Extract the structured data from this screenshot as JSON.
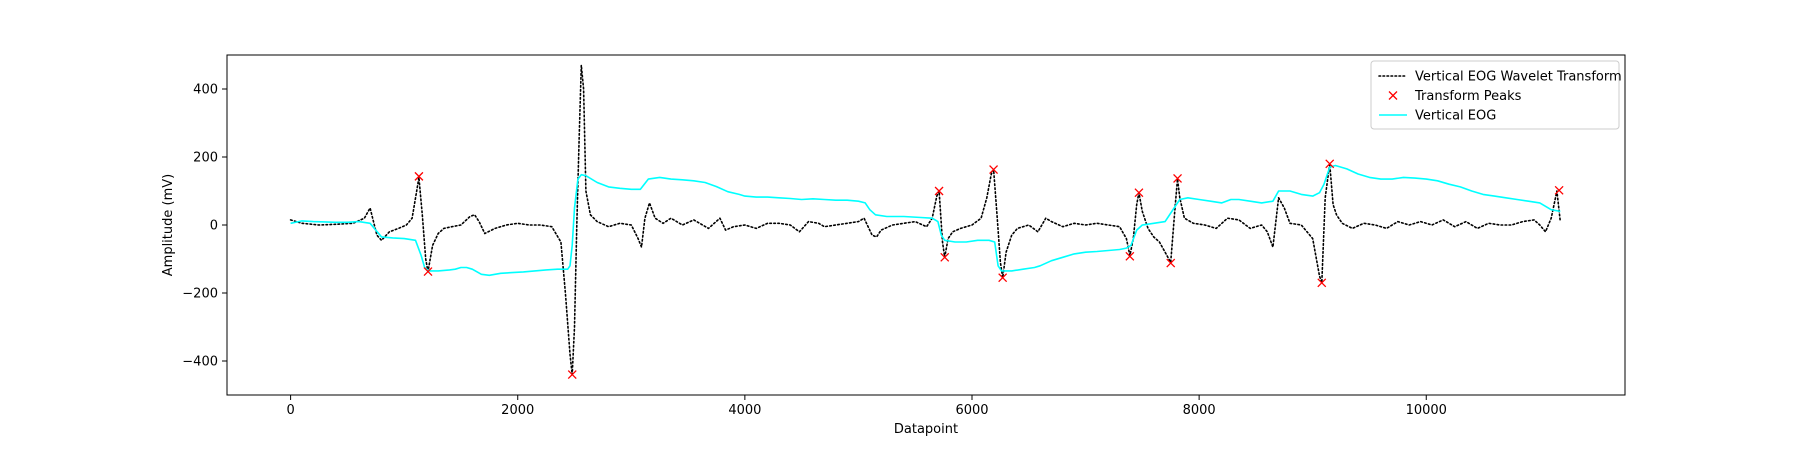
{
  "chart_data": {
    "type": "line",
    "title": "",
    "xlabel": "Datapoint",
    "ylabel": "Amplitude (mV)",
    "xlim": [
      -560,
      11750
    ],
    "ylim": [
      -500,
      500
    ],
    "xticks": [
      0,
      2000,
      4000,
      6000,
      8000,
      10000
    ],
    "yticks": [
      -400,
      -200,
      0,
      200,
      400
    ],
    "grid": false,
    "legend_position": "top-right",
    "series": [
      {
        "name": "Vertical EOG Wavelet Transform",
        "style": "dotted",
        "color": "#000000",
        "points": [
          [
            0,
            15
          ],
          [
            100,
            5
          ],
          [
            250,
            0
          ],
          [
            400,
            2
          ],
          [
            550,
            5
          ],
          [
            650,
            20
          ],
          [
            700,
            50
          ],
          [
            760,
            -30
          ],
          [
            800,
            -45
          ],
          [
            870,
            -20
          ],
          [
            950,
            -10
          ],
          [
            1020,
            0
          ],
          [
            1070,
            20
          ],
          [
            1110,
            100
          ],
          [
            1130,
            140
          ],
          [
            1160,
            30
          ],
          [
            1190,
            -100
          ],
          [
            1210,
            -137
          ],
          [
            1250,
            -60
          ],
          [
            1300,
            -25
          ],
          [
            1350,
            -10
          ],
          [
            1420,
            -5
          ],
          [
            1500,
            0
          ],
          [
            1580,
            25
          ],
          [
            1620,
            30
          ],
          [
            1660,
            10
          ],
          [
            1710,
            -25
          ],
          [
            1800,
            -10
          ],
          [
            1900,
            0
          ],
          [
            2000,
            5
          ],
          [
            2100,
            0
          ],
          [
            2200,
            0
          ],
          [
            2300,
            -5
          ],
          [
            2380,
            -50
          ],
          [
            2420,
            -200
          ],
          [
            2460,
            -380
          ],
          [
            2480,
            -440
          ],
          [
            2500,
            -300
          ],
          [
            2520,
            0
          ],
          [
            2540,
            250
          ],
          [
            2560,
            470
          ],
          [
            2580,
            400
          ],
          [
            2600,
            100
          ],
          [
            2640,
            30
          ],
          [
            2700,
            10
          ],
          [
            2800,
            -5
          ],
          [
            2900,
            5
          ],
          [
            3000,
            0
          ],
          [
            3060,
            -40
          ],
          [
            3090,
            -65
          ],
          [
            3120,
            20
          ],
          [
            3160,
            65
          ],
          [
            3210,
            20
          ],
          [
            3280,
            5
          ],
          [
            3350,
            20
          ],
          [
            3450,
            0
          ],
          [
            3550,
            15
          ],
          [
            3680,
            -10
          ],
          [
            3780,
            20
          ],
          [
            3830,
            -15
          ],
          [
            3900,
            -5
          ],
          [
            4000,
            0
          ],
          [
            4100,
            -10
          ],
          [
            4200,
            5
          ],
          [
            4300,
            5
          ],
          [
            4400,
            0
          ],
          [
            4480,
            -20
          ],
          [
            4560,
            10
          ],
          [
            4650,
            5
          ],
          [
            4700,
            -5
          ],
          [
            4800,
            0
          ],
          [
            4900,
            5
          ],
          [
            5000,
            10
          ],
          [
            5050,
            20
          ],
          [
            5120,
            -30
          ],
          [
            5160,
            -35
          ],
          [
            5200,
            -15
          ],
          [
            5300,
            0
          ],
          [
            5400,
            5
          ],
          [
            5500,
            10
          ],
          [
            5600,
            -5
          ],
          [
            5650,
            20
          ],
          [
            5690,
            85
          ],
          [
            5710,
            100
          ],
          [
            5740,
            -50
          ],
          [
            5760,
            -95
          ],
          [
            5790,
            -40
          ],
          [
            5830,
            -20
          ],
          [
            5900,
            -10
          ],
          [
            6000,
            0
          ],
          [
            6080,
            20
          ],
          [
            6130,
            80
          ],
          [
            6170,
            150
          ],
          [
            6190,
            163
          ],
          [
            6220,
            30
          ],
          [
            6250,
            -110
          ],
          [
            6270,
            -155
          ],
          [
            6300,
            -80
          ],
          [
            6350,
            -30
          ],
          [
            6400,
            -10
          ],
          [
            6500,
            0
          ],
          [
            6580,
            -20
          ],
          [
            6650,
            20
          ],
          [
            6700,
            10
          ],
          [
            6800,
            -5
          ],
          [
            6900,
            5
          ],
          [
            7000,
            0
          ],
          [
            7100,
            5
          ],
          [
            7200,
            0
          ],
          [
            7300,
            -5
          ],
          [
            7360,
            -40
          ],
          [
            7390,
            -90
          ],
          [
            7420,
            -40
          ],
          [
            7450,
            60
          ],
          [
            7470,
            95
          ],
          [
            7500,
            40
          ],
          [
            7550,
            -10
          ],
          [
            7600,
            -35
          ],
          [
            7650,
            -50
          ],
          [
            7700,
            -80
          ],
          [
            7750,
            -110
          ],
          [
            7790,
            60
          ],
          [
            7810,
            135
          ],
          [
            7830,
            80
          ],
          [
            7870,
            20
          ],
          [
            7950,
            5
          ],
          [
            8050,
            0
          ],
          [
            8150,
            -10
          ],
          [
            8250,
            20
          ],
          [
            8350,
            15
          ],
          [
            8450,
            -10
          ],
          [
            8550,
            0
          ],
          [
            8600,
            -20
          ],
          [
            8650,
            -65
          ],
          [
            8700,
            80
          ],
          [
            8750,
            50
          ],
          [
            8800,
            5
          ],
          [
            8900,
            0
          ],
          [
            9000,
            -40
          ],
          [
            9060,
            -150
          ],
          [
            9080,
            -170
          ],
          [
            9110,
            80
          ],
          [
            9150,
            180
          ],
          [
            9180,
            60
          ],
          [
            9210,
            30
          ],
          [
            9260,
            5
          ],
          [
            9350,
            -10
          ],
          [
            9450,
            5
          ],
          [
            9550,
            0
          ],
          [
            9650,
            -10
          ],
          [
            9750,
            10
          ],
          [
            9850,
            0
          ],
          [
            9950,
            10
          ],
          [
            10050,
            0
          ],
          [
            10150,
            15
          ],
          [
            10250,
            -5
          ],
          [
            10350,
            10
          ],
          [
            10450,
            -10
          ],
          [
            10550,
            5
          ],
          [
            10650,
            0
          ],
          [
            10750,
            0
          ],
          [
            10850,
            10
          ],
          [
            10950,
            15
          ],
          [
            11000,
            0
          ],
          [
            11050,
            -20
          ],
          [
            11100,
            20
          ],
          [
            11150,
            100
          ],
          [
            11180,
            10
          ]
        ]
      },
      {
        "name": "Transform Peaks",
        "style": "markers",
        "color": "#ff0000",
        "points": [
          [
            1130,
            143
          ],
          [
            1210,
            -137
          ],
          [
            2480,
            -440
          ],
          [
            5710,
            100
          ],
          [
            5760,
            -95
          ],
          [
            6190,
            163
          ],
          [
            6270,
            -155
          ],
          [
            7390,
            -92
          ],
          [
            7470,
            95
          ],
          [
            7750,
            -112
          ],
          [
            7810,
            137
          ],
          [
            9080,
            -170
          ],
          [
            9150,
            180
          ],
          [
            11170,
            102
          ]
        ]
      },
      {
        "name": "Vertical EOG",
        "style": "solid",
        "color": "#00ffff",
        "points": [
          [
            0,
            5
          ],
          [
            100,
            12
          ],
          [
            200,
            10
          ],
          [
            300,
            9
          ],
          [
            400,
            8
          ],
          [
            500,
            8
          ],
          [
            600,
            10
          ],
          [
            700,
            5
          ],
          [
            750,
            -15
          ],
          [
            800,
            -35
          ],
          [
            900,
            -38
          ],
          [
            1000,
            -40
          ],
          [
            1100,
            -45
          ],
          [
            1150,
            -90
          ],
          [
            1180,
            -125
          ],
          [
            1220,
            -135
          ],
          [
            1300,
            -135
          ],
          [
            1400,
            -132
          ],
          [
            1450,
            -130
          ],
          [
            1500,
            -125
          ],
          [
            1550,
            -125
          ],
          [
            1600,
            -130
          ],
          [
            1680,
            -145
          ],
          [
            1750,
            -148
          ],
          [
            1850,
            -142
          ],
          [
            1950,
            -140
          ],
          [
            2050,
            -138
          ],
          [
            2150,
            -135
          ],
          [
            2250,
            -132
          ],
          [
            2350,
            -130
          ],
          [
            2440,
            -130
          ],
          [
            2460,
            -120
          ],
          [
            2480,
            -60
          ],
          [
            2500,
            50
          ],
          [
            2530,
            135
          ],
          [
            2560,
            148
          ],
          [
            2600,
            145
          ],
          [
            2700,
            125
          ],
          [
            2800,
            112
          ],
          [
            2900,
            108
          ],
          [
            3000,
            105
          ],
          [
            3080,
            105
          ],
          [
            3150,
            135
          ],
          [
            3250,
            140
          ],
          [
            3350,
            135
          ],
          [
            3450,
            133
          ],
          [
            3550,
            130
          ],
          [
            3650,
            125
          ],
          [
            3750,
            113
          ],
          [
            3850,
            98
          ],
          [
            3950,
            90
          ],
          [
            4000,
            85
          ],
          [
            4100,
            82
          ],
          [
            4200,
            82
          ],
          [
            4300,
            80
          ],
          [
            4400,
            78
          ],
          [
            4500,
            75
          ],
          [
            4600,
            77
          ],
          [
            4700,
            75
          ],
          [
            4800,
            73
          ],
          [
            4900,
            73
          ],
          [
            5000,
            70
          ],
          [
            5060,
            65
          ],
          [
            5100,
            45
          ],
          [
            5150,
            30
          ],
          [
            5250,
            25
          ],
          [
            5400,
            25
          ],
          [
            5550,
            22
          ],
          [
            5650,
            20
          ],
          [
            5700,
            10
          ],
          [
            5730,
            -30
          ],
          [
            5760,
            -45
          ],
          [
            5850,
            -50
          ],
          [
            5950,
            -50
          ],
          [
            6050,
            -45
          ],
          [
            6150,
            -45
          ],
          [
            6200,
            -50
          ],
          [
            6230,
            -120
          ],
          [
            6260,
            -135
          ],
          [
            6350,
            -135
          ],
          [
            6450,
            -130
          ],
          [
            6550,
            -125
          ],
          [
            6600,
            -120
          ],
          [
            6700,
            -105
          ],
          [
            6800,
            -95
          ],
          [
            6900,
            -85
          ],
          [
            7000,
            -80
          ],
          [
            7100,
            -78
          ],
          [
            7200,
            -75
          ],
          [
            7300,
            -72
          ],
          [
            7360,
            -68
          ],
          [
            7400,
            -60
          ],
          [
            7450,
            -15
          ],
          [
            7500,
            0
          ],
          [
            7600,
            5
          ],
          [
            7700,
            10
          ],
          [
            7780,
            50
          ],
          [
            7830,
            75
          ],
          [
            7900,
            80
          ],
          [
            8000,
            75
          ],
          [
            8100,
            70
          ],
          [
            8200,
            65
          ],
          [
            8280,
            75
          ],
          [
            8350,
            75
          ],
          [
            8450,
            70
          ],
          [
            8550,
            65
          ],
          [
            8650,
            70
          ],
          [
            8700,
            100
          ],
          [
            8800,
            100
          ],
          [
            8900,
            90
          ],
          [
            9000,
            85
          ],
          [
            9060,
            95
          ],
          [
            9100,
            120
          ],
          [
            9150,
            170
          ],
          [
            9200,
            175
          ],
          [
            9300,
            165
          ],
          [
            9400,
            150
          ],
          [
            9500,
            140
          ],
          [
            9600,
            135
          ],
          [
            9700,
            135
          ],
          [
            9800,
            140
          ],
          [
            9900,
            138
          ],
          [
            10000,
            135
          ],
          [
            10100,
            130
          ],
          [
            10200,
            120
          ],
          [
            10300,
            112
          ],
          [
            10400,
            100
          ],
          [
            10500,
            90
          ],
          [
            10600,
            85
          ],
          [
            10700,
            80
          ],
          [
            10800,
            75
          ],
          [
            10900,
            70
          ],
          [
            11000,
            65
          ],
          [
            11100,
            45
          ],
          [
            11180,
            40
          ]
        ]
      }
    ]
  }
}
